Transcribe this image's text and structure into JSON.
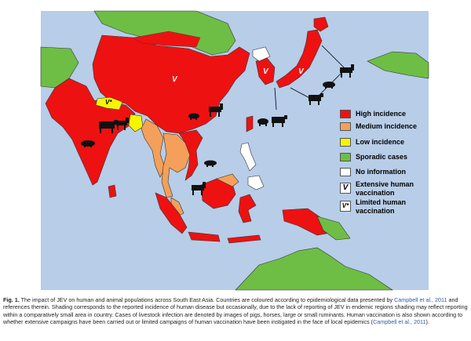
{
  "figure": {
    "fig_label": "Fig. 1.",
    "caption_part1": " The impact of JEV on human and animal populations across South East Asia. Countries are coloured according to epidemiological data presented by ",
    "citation_1": "Campbell et al., 2011",
    "caption_part2": " and references therein. Shading corresponds to the reported incidence of human disease but occasionally, due to the lack of reporting of JEV in endemic regions shading may reflect reporting within a comparatively small area in country. Cases of livestock infection are denoted by images of pigs, horses, large or small ruminants. Human vaccination is also shown according to whether extensive campaigns have been carried out or limited campaigns of human vaccination have been instigated in the face of local epidemics (",
    "citation_2": "Campbell et al., 2011",
    "caption_part3": ")."
  },
  "legend": {
    "items": [
      {
        "label": "High incidence",
        "color": "#ee1111"
      },
      {
        "label": "Medium incidence",
        "color": "#f4a05a"
      },
      {
        "label": "Low incidence",
        "color": "#f5f500"
      },
      {
        "label": "Sporadic cases",
        "color": "#6ebe45"
      },
      {
        "label": "No information",
        "color": "#ffffff"
      }
    ],
    "vaccination": [
      {
        "symbol": "V",
        "label_line1": "Extensive human",
        "label_line2": "vaccination"
      },
      {
        "symbol": "V*",
        "label_line1": "Limited human",
        "label_line2": "vaccination"
      }
    ]
  },
  "map_markers": {
    "china_symbol": "V",
    "nepal_symbol": "V*",
    "korea_symbol": "V",
    "japan_symbol": "V"
  },
  "colors": {
    "sea": "#b7cde8",
    "high": "#ee1111",
    "medium": "#f4a05a",
    "low": "#f5f500",
    "sporadic": "#6ebe45",
    "none": "#ffffff"
  }
}
